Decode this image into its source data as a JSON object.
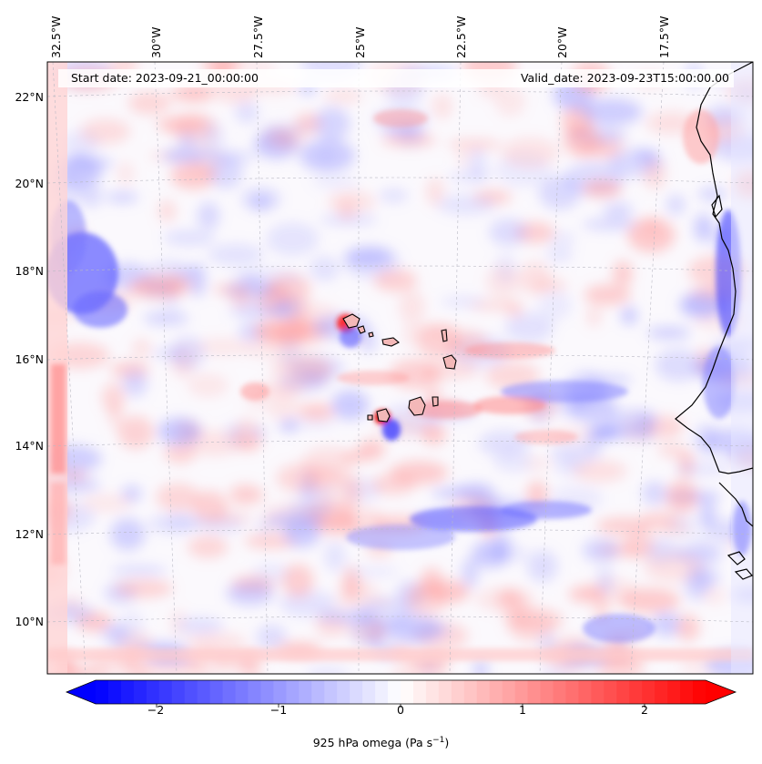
{
  "header": {
    "start_date": "Start date: 2023-09-21_00:00:00",
    "valid_date": "Valid_date: 2023-09-23T15:00:00.00"
  },
  "longitude_labels": [
    "32.5°W",
    "30°W",
    "27.5°W",
    "25°W",
    "22.5°W",
    "20°W",
    "17.5°W"
  ],
  "latitude_labels": [
    "22°N",
    "20°N",
    "18°N",
    "16°N",
    "14°N",
    "12°N",
    "10°N"
  ],
  "colorbar": {
    "title_prefix": "925 hPa omega (Pa s",
    "title_exp": "−1",
    "title_suffix": ")",
    "tick_labels": [
      "−2",
      "−1",
      "0",
      "1",
      "2"
    ],
    "ticks": [
      -2,
      -1,
      0,
      1,
      2
    ],
    "range": [
      -2.5,
      2.5
    ],
    "colormap": "bwr",
    "low_color": "#0000ff",
    "mid_color": "#ffffff",
    "high_color": "#ff0000",
    "extend": "both"
  },
  "map": {
    "projection": "lambert-conformal",
    "coastline_color": "#000000",
    "gridlines": true,
    "field": "omega-925hPa"
  }
}
